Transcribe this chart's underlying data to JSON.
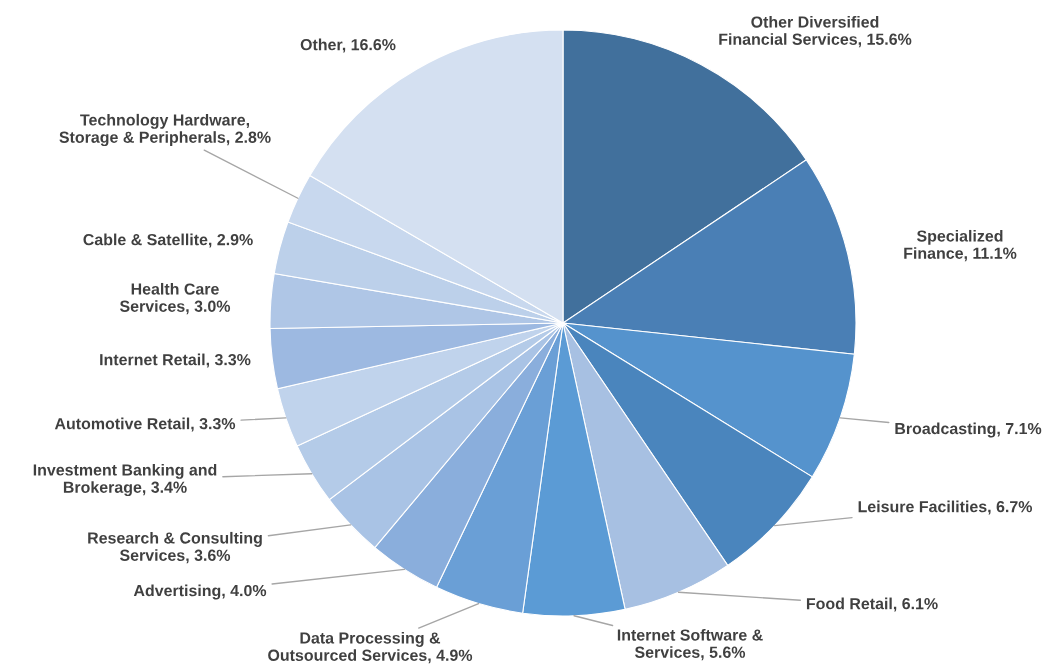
{
  "chart_data": {
    "type": "pie",
    "categories": [
      "Other Diversified Financial Services",
      "Specialized Finance",
      "Broadcasting",
      "Leisure Facilities",
      "Food Retail",
      "Internet Software & Services",
      "Data Processing & Outsourced Services",
      "Advertising",
      "Research & Consulting Services",
      "Investment Banking and Brokerage",
      "Automotive Retail",
      "Internet Retail",
      "Health Care Services",
      "Cable & Satellite",
      "Technology Hardware, Storage & Peripherals",
      "Other"
    ],
    "values": [
      15.6,
      11.1,
      7.1,
      6.7,
      6.1,
      5.6,
      4.9,
      4.0,
      3.6,
      3.4,
      3.3,
      3.3,
      3.0,
      2.9,
      2.8,
      16.6
    ],
    "value_labels": [
      "15.6%",
      "11.1%",
      "7.1%",
      "6.7%",
      "6.1%",
      "5.6%",
      "4.9%",
      "4.0%",
      "3.6%",
      "3.4%",
      "3.3%",
      "3.3%",
      "3.0%",
      "2.9%",
      "2.8%",
      "16.6%"
    ],
    "colors": [
      "#41709c",
      "#4a7fb5",
      "#5593cd",
      "#4a85bd",
      "#a7c0e2",
      "#5b9bd5",
      "#6a9fd6",
      "#8aaedc",
      "#a9c3e5",
      "#b4cbe8",
      "#c0d3ec",
      "#9db9e1",
      "#afc6e6",
      "#bcd0ea",
      "#c8d8ee",
      "#d4e0f1"
    ],
    "legend": false
  }
}
